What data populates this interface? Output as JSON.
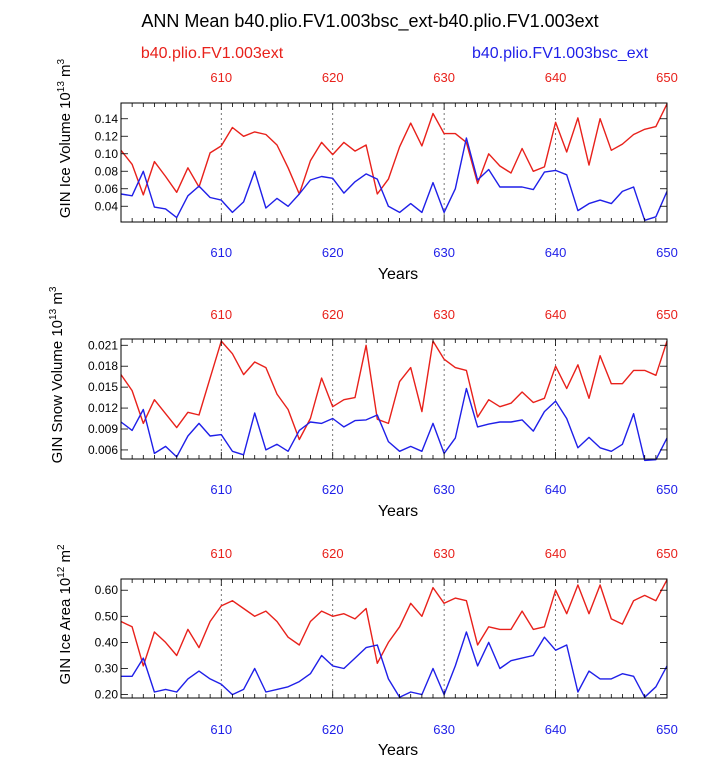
{
  "title": "ANN Mean b40.plio.FV1.003bsc_ext-b40.plio.FV1.003ext",
  "legend": {
    "red": {
      "label": "b40.plio.FV1.003ext",
      "color": "#e8211b"
    },
    "blue": {
      "label": "b40.plio.FV1.003bsc_ext",
      "color": "#1f1fe8"
    }
  },
  "chart_data": [
    {
      "type": "line",
      "ylabel_main": "GIN Ice Volume 10",
      "ylabel_exp": "13",
      "ylabel_unit": " m",
      "ylabel_unit_exp": "3",
      "xlabel": "Years",
      "xlim": [
        601,
        650
      ],
      "ylim": [
        0.022,
        0.158
      ],
      "yticks": [
        0.04,
        0.06,
        0.08,
        0.1,
        0.12,
        0.14
      ],
      "ytick_labels": [
        "0.04",
        "0.06",
        "0.08",
        "0.10",
        "0.12",
        "0.14"
      ],
      "top_tick_labels": [
        "610",
        "620",
        "630",
        "640",
        "650"
      ],
      "bottom_tick_labels": [
        "610",
        "620",
        "630",
        "640",
        "650"
      ],
      "series": [
        {
          "name": "b40.plio.FV1.003ext",
          "color": "#e8211b",
          "values": [
            0.104,
            0.088,
            0.053,
            0.091,
            0.074,
            0.056,
            0.084,
            0.062,
            0.101,
            0.109,
            0.13,
            0.12,
            0.125,
            0.122,
            0.11,
            0.084,
            0.054,
            0.092,
            0.113,
            0.099,
            0.113,
            0.103,
            0.11,
            0.054,
            0.071,
            0.108,
            0.135,
            0.109,
            0.146,
            0.123,
            0.123,
            0.113,
            0.066,
            0.1,
            0.086,
            0.078,
            0.106,
            0.08,
            0.085,
            0.136,
            0.102,
            0.141,
            0.087,
            0.14,
            0.104,
            0.111,
            0.122,
            0.128,
            0.131,
            0.157
          ]
        },
        {
          "name": "b40.plio.FV1.003bsc_ext",
          "color": "#1f1fe8",
          "values": [
            0.054,
            0.052,
            0.08,
            0.039,
            0.037,
            0.027,
            0.052,
            0.063,
            0.05,
            0.047,
            0.033,
            0.045,
            0.08,
            0.038,
            0.049,
            0.04,
            0.054,
            0.07,
            0.074,
            0.072,
            0.055,
            0.068,
            0.077,
            0.071,
            0.04,
            0.033,
            0.043,
            0.033,
            0.067,
            0.033,
            0.06,
            0.118,
            0.07,
            0.082,
            0.062,
            0.062,
            0.062,
            0.059,
            0.079,
            0.081,
            0.076,
            0.035,
            0.043,
            0.047,
            0.043,
            0.057,
            0.062,
            0.024,
            0.028,
            0.057
          ]
        }
      ]
    },
    {
      "type": "line",
      "ylabel_main": "GIN Snow Volume 10",
      "ylabel_exp": "13",
      "ylabel_unit": " m",
      "ylabel_unit_exp": "3",
      "xlabel": "Years",
      "xlim": [
        601,
        650
      ],
      "ylim": [
        0.0047,
        0.0219
      ],
      "yticks": [
        0.006,
        0.009,
        0.012,
        0.015,
        0.018,
        0.021
      ],
      "ytick_labels": [
        "0.006",
        "0.009",
        "0.012",
        "0.015",
        "0.018",
        "0.021"
      ],
      "top_tick_labels": [
        "610",
        "620",
        "630",
        "640",
        "650"
      ],
      "bottom_tick_labels": [
        "610",
        "620",
        "630",
        "640",
        "650"
      ],
      "series": [
        {
          "name": "b40.plio.FV1.003ext",
          "color": "#e8211b",
          "values": [
            0.0168,
            0.0145,
            0.0098,
            0.0132,
            0.0112,
            0.0092,
            0.0114,
            0.011,
            0.0163,
            0.0216,
            0.0198,
            0.0168,
            0.0186,
            0.0178,
            0.014,
            0.0118,
            0.0075,
            0.0105,
            0.0163,
            0.0122,
            0.0132,
            0.0135,
            0.021,
            0.0104,
            0.0098,
            0.0158,
            0.0178,
            0.0115,
            0.0216,
            0.019,
            0.0178,
            0.0174,
            0.0107,
            0.0132,
            0.0122,
            0.0127,
            0.0143,
            0.0128,
            0.0134,
            0.018,
            0.0148,
            0.0182,
            0.0134,
            0.0195,
            0.0155,
            0.0155,
            0.0174,
            0.0174,
            0.0167,
            0.0216
          ]
        },
        {
          "name": "b40.plio.FV1.003bsc_ext",
          "color": "#1f1fe8",
          "values": [
            0.01,
            0.0088,
            0.0118,
            0.0055,
            0.0065,
            0.005,
            0.008,
            0.0098,
            0.008,
            0.0082,
            0.0058,
            0.0053,
            0.0113,
            0.006,
            0.0068,
            0.0058,
            0.0088,
            0.01,
            0.0098,
            0.0105,
            0.0093,
            0.0102,
            0.0103,
            0.011,
            0.0072,
            0.0058,
            0.0065,
            0.0058,
            0.0098,
            0.0055,
            0.0077,
            0.0148,
            0.0093,
            0.0097,
            0.01,
            0.01,
            0.0103,
            0.0087,
            0.0115,
            0.013,
            0.0105,
            0.0063,
            0.0078,
            0.0063,
            0.0058,
            0.0068,
            0.0112,
            0.0045,
            0.0046,
            0.0077
          ]
        }
      ]
    },
    {
      "type": "line",
      "ylabel_main": "GIN Ice Area 10",
      "ylabel_exp": "12",
      "ylabel_unit": " m",
      "ylabel_unit_exp": "2",
      "xlabel": "Years",
      "xlim": [
        601,
        650
      ],
      "ylim": [
        0.187,
        0.643
      ],
      "yticks": [
        0.2,
        0.3,
        0.4,
        0.5,
        0.6
      ],
      "ytick_labels": [
        "0.20",
        "0.30",
        "0.40",
        "0.50",
        "0.60"
      ],
      "top_tick_labels": [
        "610",
        "620",
        "630",
        "640",
        "650"
      ],
      "bottom_tick_labels": [
        "610",
        "620",
        "630",
        "640",
        "650"
      ],
      "series": [
        {
          "name": "b40.plio.FV1.003ext",
          "color": "#e8211b",
          "values": [
            0.48,
            0.46,
            0.31,
            0.44,
            0.4,
            0.35,
            0.45,
            0.38,
            0.48,
            0.54,
            0.56,
            0.53,
            0.5,
            0.52,
            0.48,
            0.42,
            0.39,
            0.48,
            0.52,
            0.5,
            0.51,
            0.49,
            0.53,
            0.32,
            0.4,
            0.46,
            0.55,
            0.5,
            0.61,
            0.55,
            0.57,
            0.56,
            0.39,
            0.46,
            0.45,
            0.45,
            0.52,
            0.45,
            0.46,
            0.6,
            0.51,
            0.62,
            0.51,
            0.62,
            0.49,
            0.47,
            0.56,
            0.58,
            0.56,
            0.64
          ]
        },
        {
          "name": "b40.plio.FV1.003bsc_ext",
          "color": "#1f1fe8",
          "values": [
            0.27,
            0.27,
            0.34,
            0.21,
            0.22,
            0.21,
            0.26,
            0.29,
            0.26,
            0.24,
            0.2,
            0.22,
            0.3,
            0.21,
            0.22,
            0.23,
            0.25,
            0.28,
            0.35,
            0.31,
            0.3,
            0.34,
            0.38,
            0.39,
            0.26,
            0.19,
            0.21,
            0.2,
            0.3,
            0.2,
            0.31,
            0.44,
            0.31,
            0.4,
            0.3,
            0.33,
            0.34,
            0.35,
            0.42,
            0.37,
            0.39,
            0.21,
            0.29,
            0.26,
            0.26,
            0.28,
            0.27,
            0.19,
            0.23,
            0.31
          ]
        }
      ]
    }
  ]
}
